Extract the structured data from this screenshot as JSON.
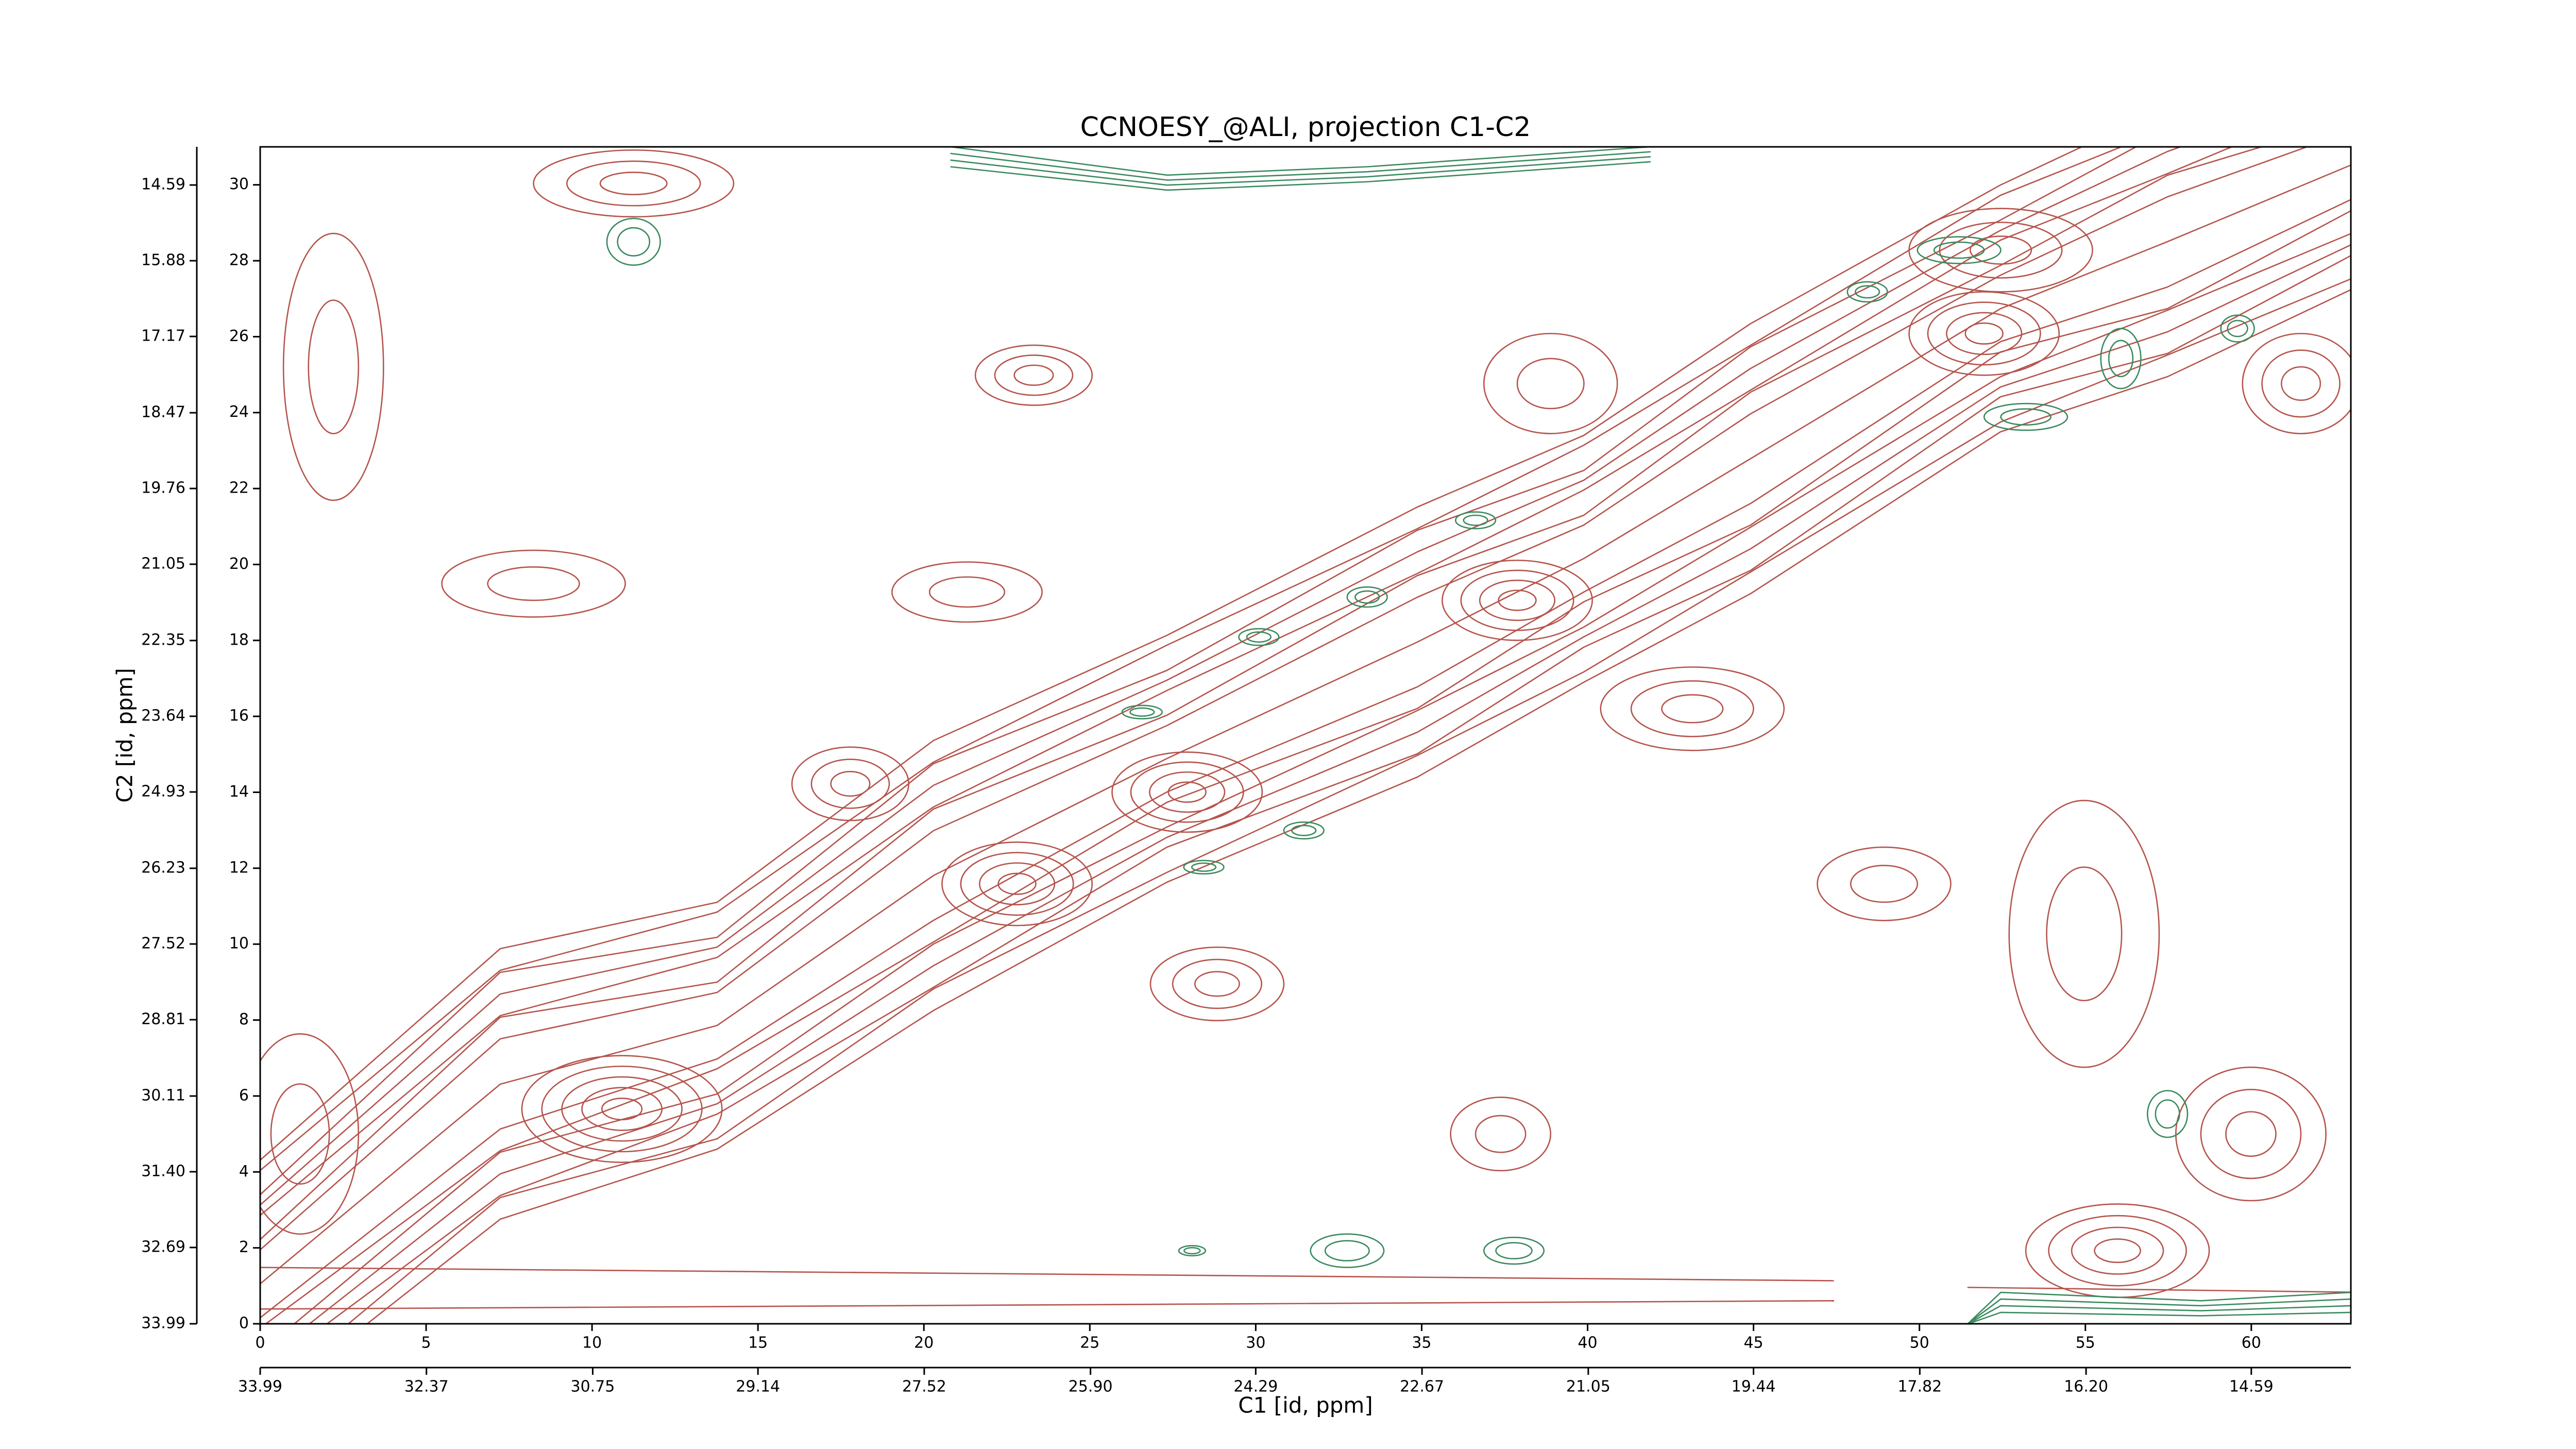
{
  "chart_data": {
    "type": "contour",
    "title": "CCNOESY_@ALI, projection C1-C2",
    "xlabel": "C1 [id, ppm]",
    "ylabel": "C2 [id, ppm]",
    "xlim": [
      0,
      63
    ],
    "ylim": [
      0,
      31
    ],
    "xticks": [
      0,
      5,
      10,
      15,
      20,
      25,
      30,
      35,
      40,
      45,
      50,
      55,
      60
    ],
    "yticks": [
      0,
      2,
      4,
      6,
      8,
      10,
      12,
      14,
      16,
      18,
      20,
      22,
      24,
      26,
      28,
      30
    ],
    "x2lim": [
      33.99,
      13.62
    ],
    "x2ticks": [
      33.99,
      32.37,
      30.75,
      29.14,
      27.52,
      {
        "value": 25.9,
        "label": "25.90"
      },
      24.29,
      22.67,
      21.05,
      19.44,
      17.82,
      {
        "value": 16.2,
        "label": "16.20"
      },
      14.59
    ],
    "y2lim": [
      33.99,
      13.94
    ],
    "y2ticks": [
      33.99,
      32.69,
      {
        "value": 31.4,
        "label": "31.40"
      },
      30.11,
      28.81,
      27.52,
      26.23,
      24.93,
      23.64,
      22.35,
      21.05,
      19.76,
      18.47,
      17.17,
      15.88,
      14.59
    ]
  }
}
